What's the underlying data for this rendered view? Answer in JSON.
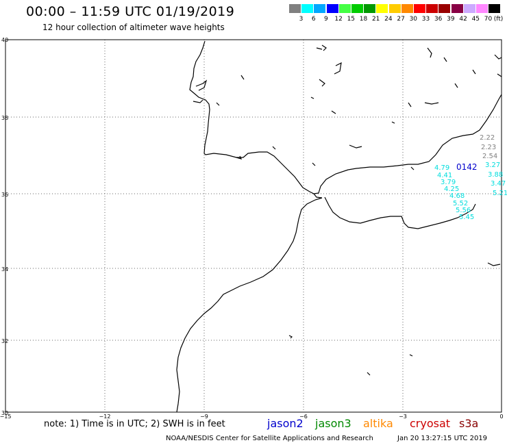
{
  "header": {
    "title": "00:00 – 11:59 UTC 01/19/2019",
    "subtitle": "12 hour collection of altimeter wave heights"
  },
  "legend": {
    "unit": "(ft)",
    "bins": [
      {
        "label": "3",
        "color": "#808080"
      },
      {
        "label": "6",
        "color": "#00ffff"
      },
      {
        "label": "9",
        "color": "#00a8ff"
      },
      {
        "label": "12",
        "color": "#0000ff"
      },
      {
        "label": "15",
        "color": "#44ff44"
      },
      {
        "label": "18",
        "color": "#00cc00"
      },
      {
        "label": "21",
        "color": "#009900"
      },
      {
        "label": "24",
        "color": "#ffff00"
      },
      {
        "label": "27",
        "color": "#ffcc00"
      },
      {
        "label": "30",
        "color": "#ff8800"
      },
      {
        "label": "33",
        "color": "#ff0000"
      },
      {
        "label": "36",
        "color": "#cc0000"
      },
      {
        "label": "39",
        "color": "#990000"
      },
      {
        "label": "42",
        "color": "#880044"
      },
      {
        "label": "45",
        "color": "#ccaaff"
      },
      {
        "label": "70",
        "color": "#ff88ff"
      },
      {
        "label": "",
        "color": "#000000"
      }
    ]
  },
  "axes": {
    "lat_labels": [
      "40",
      "38",
      "36",
      "34",
      "32",
      "30"
    ],
    "lon_labels": [
      "−15",
      "−12",
      "−9",
      "−6",
      "−3",
      "0"
    ]
  },
  "track": {
    "pass_id": "0142",
    "pass_color": "#0000cc",
    "gray_values": [
      "2.22",
      "2.23",
      "2.54"
    ],
    "cyan_values": [
      "3.27",
      "3.88",
      "3.47",
      "5.21",
      "4.79",
      "4.41",
      "3.79",
      "4.25",
      "4.68",
      "5.52",
      "5.56",
      "5.45"
    ]
  },
  "note": "note: 1) Time is in UTC; 2) SWH is in feet",
  "satellites": [
    {
      "name": "jason2",
      "color": "#0000cc"
    },
    {
      "name": "jason3",
      "color": "#008800"
    },
    {
      "name": "altika",
      "color": "#ff8800"
    },
    {
      "name": "cryosat",
      "color": "#cc0000"
    },
    {
      "name": "s3a",
      "color": "#880000"
    }
  ],
  "footer": {
    "left": "NOAA/NESDIS Center for Satellite Applications and Research",
    "right": "Jan 20 13:27:15 UTC 2019"
  }
}
